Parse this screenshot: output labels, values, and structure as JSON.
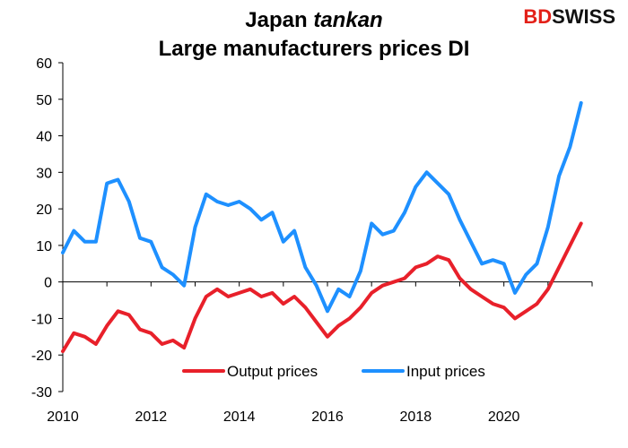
{
  "title_line1_a": "Japan",
  "title_line1_b": "tankan",
  "title_line2": "Large manufacturers prices DI",
  "logo_bd": "BD",
  "logo_swiss": "SWISS",
  "chart_data": {
    "type": "line",
    "title": "Japan tankan Large manufacturers prices DI",
    "xlabel": "",
    "ylabel": "",
    "ylim": [
      -30,
      60
    ],
    "xlim": [
      2010,
      2022
    ],
    "yticks": [
      -30,
      -20,
      -10,
      0,
      10,
      20,
      30,
      40,
      50,
      60
    ],
    "xticks": [
      2010,
      2012,
      2014,
      2016,
      2018,
      2020
    ],
    "grid": false,
    "legend": "bottom-center",
    "x": [
      2010.0,
      2010.25,
      2010.5,
      2010.75,
      2011.0,
      2011.25,
      2011.5,
      2011.75,
      2012.0,
      2012.25,
      2012.5,
      2012.75,
      2013.0,
      2013.25,
      2013.5,
      2013.75,
      2014.0,
      2014.25,
      2014.5,
      2014.75,
      2015.0,
      2015.25,
      2015.5,
      2015.75,
      2016.0,
      2016.25,
      2016.5,
      2016.75,
      2017.0,
      2017.25,
      2017.5,
      2017.75,
      2018.0,
      2018.25,
      2018.5,
      2018.75,
      2019.0,
      2019.25,
      2019.5,
      2019.75,
      2020.0,
      2020.25,
      2020.5,
      2020.75,
      2021.0,
      2021.25,
      2021.5,
      2021.75
    ],
    "series": [
      {
        "name": "Output prices",
        "color": "#e8202a",
        "values": [
          -19,
          -14,
          -15,
          -17,
          -12,
          -8,
          -9,
          -13,
          -14,
          -17,
          -16,
          -18,
          -10,
          -4,
          -2,
          -4,
          -3,
          -2,
          -4,
          -3,
          -6,
          -4,
          -7,
          -11,
          -15,
          -12,
          -10,
          -7,
          -3,
          -1,
          0,
          1,
          4,
          5,
          7,
          6,
          1,
          -2,
          -4,
          -6,
          -7,
          -10,
          -8,
          -6,
          -2,
          4,
          10,
          16
        ]
      },
      {
        "name": "Input prices",
        "color": "#1e90ff",
        "values": [
          8,
          14,
          11,
          11,
          27,
          28,
          22,
          12,
          11,
          4,
          2,
          -1,
          15,
          24,
          22,
          21,
          22,
          20,
          17,
          19,
          11,
          14,
          4,
          -1,
          -8,
          -2,
          -4,
          3,
          16,
          13,
          14,
          19,
          26,
          30,
          27,
          24,
          17,
          11,
          5,
          6,
          5,
          -3,
          2,
          5,
          15,
          29,
          37,
          49
        ]
      }
    ]
  }
}
